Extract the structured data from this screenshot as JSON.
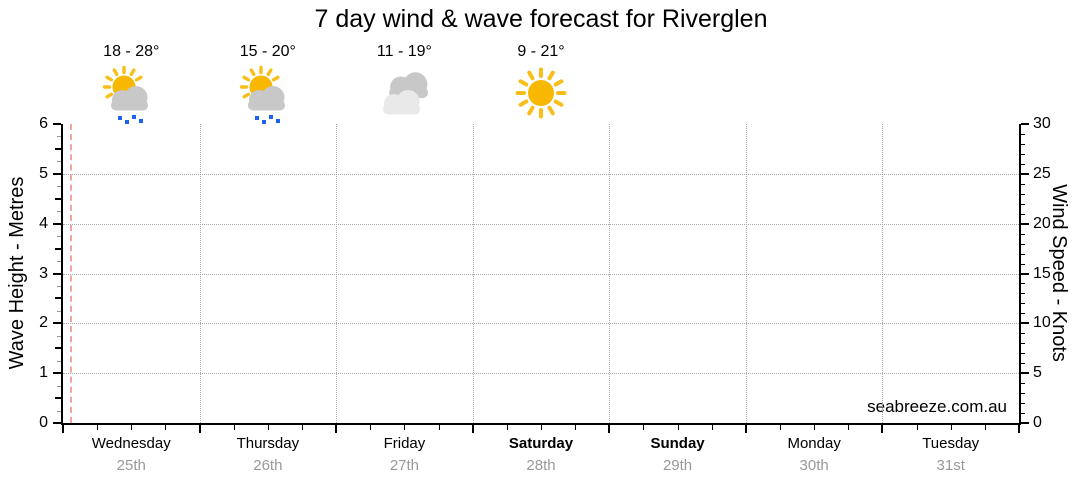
{
  "title": "7 day wind & wave forecast for Riverglen",
  "watermark": "seabreeze.com.au",
  "colors": {
    "sun": "#F8B700",
    "sun_ray": "#F9BE19",
    "cloud": "#C8C8C8",
    "cloud_light": "#E9E9E9",
    "rain": "#1B62F0",
    "now_line": "#F2A3A3",
    "gridline": "#A9A9A9",
    "axis": "#000000",
    "minor_tick_gray": "#9B9B9B",
    "date_text": "#999999",
    "watermark_text": "#8C8C8C"
  },
  "chart_data": {
    "type": "line",
    "title": "7 day wind & wave forecast for Riverglen",
    "subtitle": "",
    "legend": [],
    "grid": "dotted",
    "y_left": {
      "label": "Wave Height - Metres",
      "min": 0,
      "max": 6,
      "major_tick": 1,
      "half_tick": 0.5,
      "minor_tick": 0.25,
      "tick_labels": [
        "0",
        "1",
        "2",
        "3",
        "4",
        "5",
        "6"
      ],
      "gridlines": [
        1,
        2,
        3,
        4,
        5
      ]
    },
    "y_right": {
      "label": "Wind Speed - Knots",
      "min": 0,
      "max": 30,
      "major_tick": 5,
      "minor_tick": 1,
      "tick_labels": [
        "0",
        "5",
        "10",
        "15",
        "20",
        "25",
        "30"
      ],
      "gridlines": [
        5,
        10,
        15,
        20,
        25
      ]
    },
    "x_axis": {
      "minor_ticks_per_day": 4,
      "day_boundary_gridlines": true
    },
    "days": [
      {
        "name": "Wednesday",
        "date": "25th",
        "weekend": false,
        "temp": "18 - 28°",
        "icon": "sun-cloud-showers-icon"
      },
      {
        "name": "Thursday",
        "date": "26th",
        "weekend": false,
        "temp": "15 - 20°",
        "icon": "sun-cloud-showers-icon"
      },
      {
        "name": "Friday",
        "date": "27th",
        "weekend": false,
        "temp": "11 - 19°",
        "icon": "cloudy-icon"
      },
      {
        "name": "Saturday",
        "date": "28th",
        "weekend": true,
        "temp": "9 - 21°",
        "icon": "sunny-icon"
      },
      {
        "name": "Sunday",
        "date": "29th",
        "weekend": true,
        "temp": null,
        "icon": null
      },
      {
        "name": "Monday",
        "date": "30th",
        "weekend": false,
        "temp": null,
        "icon": null
      },
      {
        "name": "Tuesday",
        "date": "31st",
        "weekend": false,
        "temp": null,
        "icon": null
      }
    ],
    "series": [],
    "now_marker_fraction": 0.007
  }
}
